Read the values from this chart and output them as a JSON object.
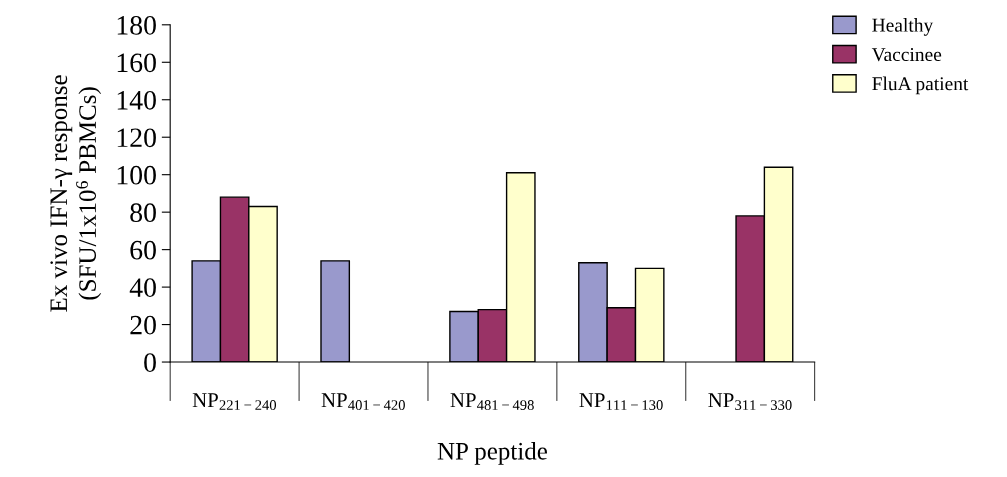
{
  "chart_data": {
    "type": "bar",
    "xlabel": "NP peptide",
    "ylabel": "Ex vivo IFN-γ response\n(SFU/1x10$^{6}$ PBMCs)",
    "categories": [
      "NP$_{221−240}$",
      "NP$_{401−420}$",
      "NP$_{481−498}$",
      "NP$_{111−130}$",
      "NP$_{311−330}$"
    ],
    "series": [
      {
        "name": "Healthy",
        "color": "#9999cc",
        "values": [
          54,
          54,
          27,
          53,
          null
        ]
      },
      {
        "name": "Vaccinee",
        "color": "#993366",
        "values": [
          88,
          null,
          28,
          29,
          78
        ]
      },
      {
        "name": "FluA patient",
        "color": "#ffffcc",
        "values": [
          83,
          null,
          101,
          50,
          104
        ]
      }
    ],
    "ylim": [
      0,
      180
    ],
    "yticks": [
      0,
      20,
      40,
      60,
      80,
      100,
      120,
      140,
      160,
      180
    ],
    "grid": false,
    "legend": "top right"
  }
}
